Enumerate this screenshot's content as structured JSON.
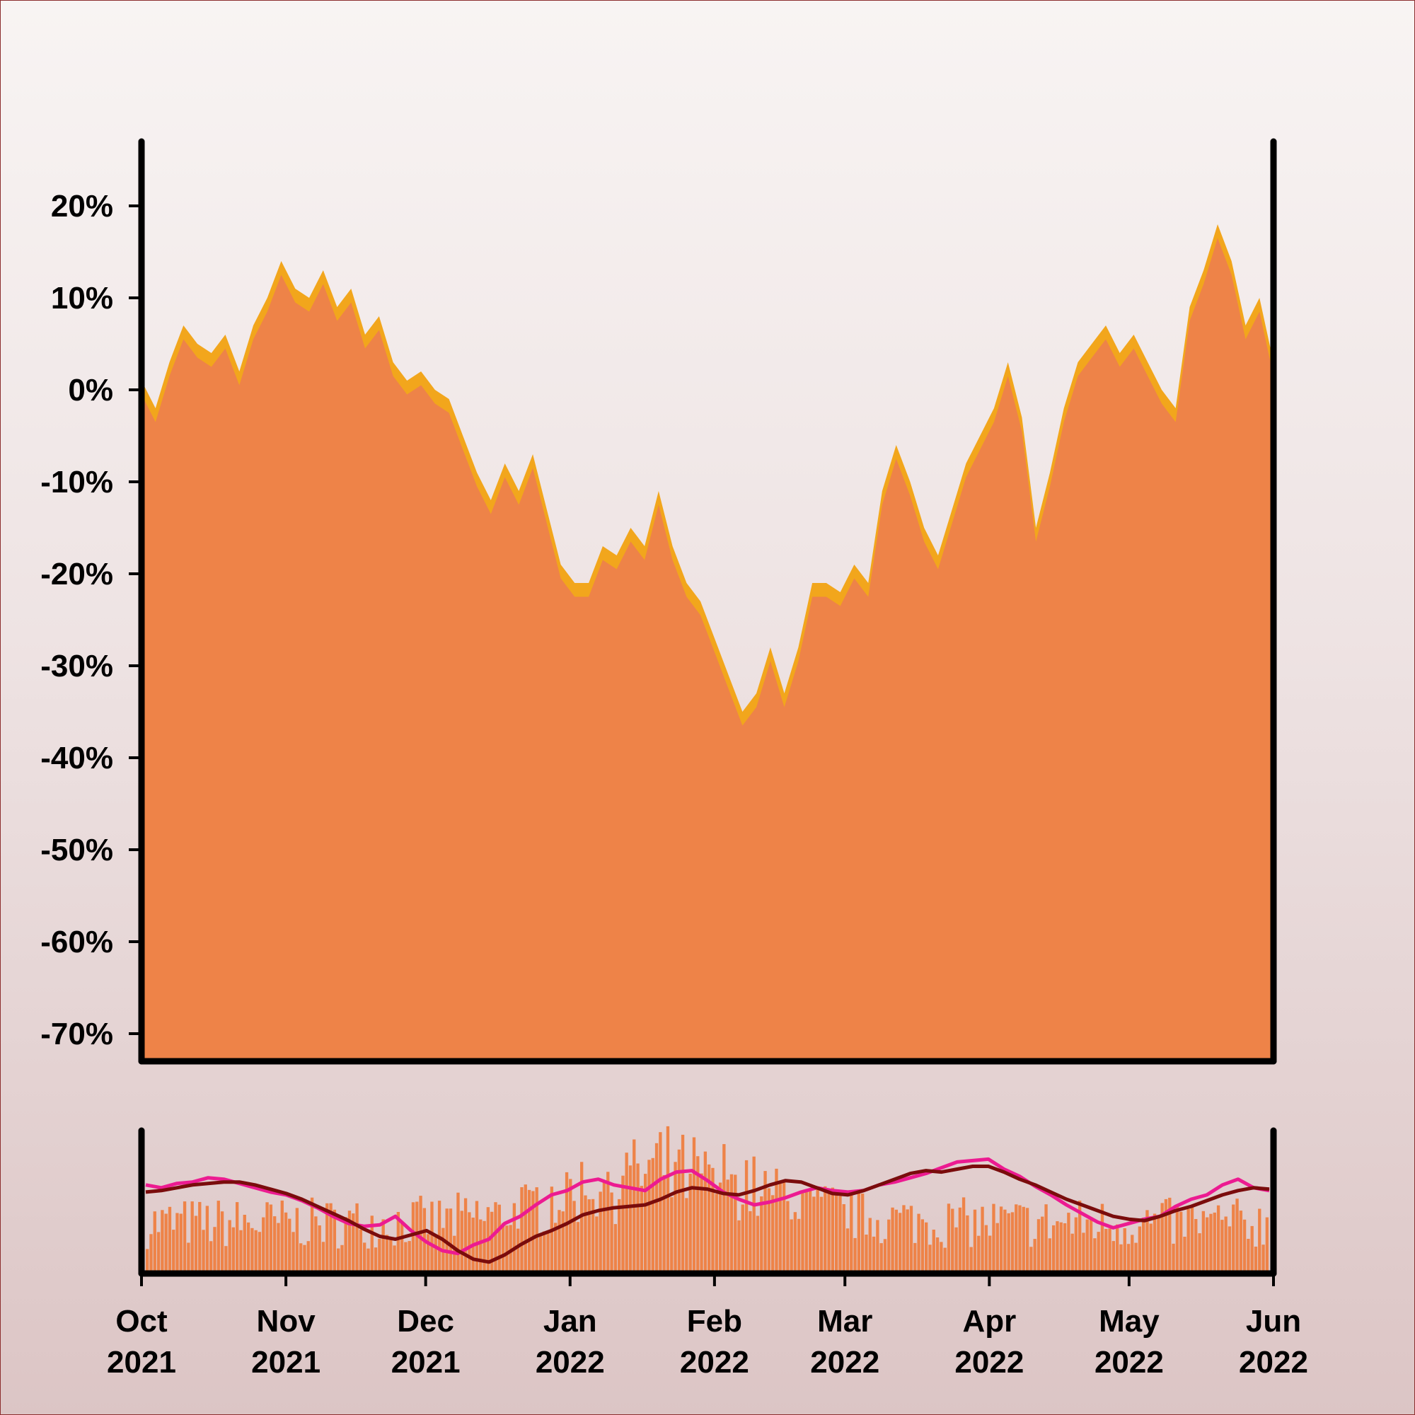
{
  "chart_data": [
    {
      "type": "area",
      "panel": "price",
      "y_tick_labels": [
        "20%",
        "10%",
        "0%",
        "-10%",
        "-20%",
        "-30%",
        "-40%",
        "-50%",
        "-60%",
        "-70%"
      ],
      "y_ticks": [
        20,
        10,
        0,
        -10,
        -20,
        -30,
        -40,
        -50,
        -60,
        -70
      ],
      "ylim": [
        -73,
        27
      ],
      "xlim": [
        "2021-10-01",
        "2022-06-01"
      ],
      "grid": false,
      "colors": {
        "fill": "#ee8348",
        "band": "#f2a61c"
      },
      "x": [
        "2021-10-01",
        "2021-10-04",
        "2021-10-07",
        "2021-10-10",
        "2021-10-13",
        "2021-10-16",
        "2021-10-19",
        "2021-10-22",
        "2021-10-25",
        "2021-10-28",
        "2021-10-31",
        "2021-11-03",
        "2021-11-06",
        "2021-11-09",
        "2021-11-12",
        "2021-11-15",
        "2021-11-18",
        "2021-11-21",
        "2021-11-24",
        "2021-11-27",
        "2021-11-30",
        "2021-12-03",
        "2021-12-06",
        "2021-12-09",
        "2021-12-12",
        "2021-12-15",
        "2021-12-18",
        "2021-12-21",
        "2021-12-24",
        "2021-12-27",
        "2021-12-30",
        "2022-01-02",
        "2022-01-05",
        "2022-01-08",
        "2022-01-11",
        "2022-01-14",
        "2022-01-17",
        "2022-01-20",
        "2022-01-23",
        "2022-01-26",
        "2022-01-29",
        "2022-02-01",
        "2022-02-04",
        "2022-02-07",
        "2022-02-10",
        "2022-02-13",
        "2022-02-16",
        "2022-02-19",
        "2022-02-22",
        "2022-02-25",
        "2022-02-28",
        "2022-03-03",
        "2022-03-06",
        "2022-03-09",
        "2022-03-12",
        "2022-03-15",
        "2022-03-18",
        "2022-03-21",
        "2022-03-24",
        "2022-03-27",
        "2022-03-30",
        "2022-04-02",
        "2022-04-05",
        "2022-04-08",
        "2022-04-11",
        "2022-04-14",
        "2022-04-17",
        "2022-04-20",
        "2022-04-23",
        "2022-04-26",
        "2022-04-29",
        "2022-05-02",
        "2022-05-05",
        "2022-05-08",
        "2022-05-11",
        "2022-05-14",
        "2022-05-17",
        "2022-05-20",
        "2022-05-23",
        "2022-05-26",
        "2022-05-29",
        "2022-06-01"
      ],
      "y": [
        1,
        -2,
        3,
        7,
        5,
        4,
        6,
        2,
        7,
        10,
        14,
        11,
        10,
        13,
        9,
        11,
        6,
        8,
        3,
        1,
        2,
        0,
        -1,
        -5,
        -9,
        -12,
        -8,
        -11,
        -7,
        -13,
        -19,
        -21,
        -21,
        -17,
        -18,
        -15,
        -17,
        -11,
        -17,
        -21,
        -23,
        -27,
        -31,
        -35,
        -33,
        -28,
        -33,
        -28,
        -21,
        -21,
        -22,
        -19,
        -21,
        -11,
        -6,
        -10,
        -15,
        -18,
        -13,
        -8,
        -5,
        -2,
        3,
        -3,
        -15,
        -9,
        -2,
        3,
        5,
        7,
        4,
        6,
        3,
        0,
        -2,
        9,
        13,
        18,
        14,
        7,
        10,
        3
      ]
    },
    {
      "type": "bar",
      "panel": "volume",
      "colors": {
        "bars": "#ee8348",
        "fast_line": "#ec1b91",
        "slow_line": "#7a0c0c"
      },
      "series": [
        {
          "values": [
            62,
            60,
            63,
            64,
            67,
            66,
            63,
            60,
            57,
            55,
            51,
            46,
            40,
            35,
            33,
            34,
            40,
            30,
            22,
            16,
            14,
            20,
            24,
            35,
            40,
            48,
            55,
            58,
            64,
            66,
            62,
            60,
            58,
            66,
            71,
            72,
            65,
            57,
            52,
            48,
            50,
            53,
            57,
            60,
            58,
            57,
            58,
            62,
            64,
            67,
            70,
            74,
            78,
            79,
            80,
            73,
            68,
            61,
            55,
            48,
            42,
            36,
            32,
            35,
            38,
            40,
            47,
            52,
            55,
            62,
            66,
            60,
            58
          ]
        },
        {
          "values": [
            57,
            58,
            60,
            62,
            63,
            64,
            64,
            62,
            59,
            56,
            52,
            47,
            42,
            37,
            31,
            26,
            24,
            27,
            30,
            24,
            16,
            10,
            8,
            13,
            20,
            26,
            30,
            35,
            41,
            44,
            46,
            47,
            48,
            52,
            57,
            60,
            59,
            56,
            55,
            58,
            62,
            65,
            64,
            60,
            56,
            55,
            58,
            62,
            66,
            70,
            72,
            71,
            73,
            75,
            75,
            71,
            66,
            62,
            57,
            52,
            48,
            44,
            40,
            38,
            37,
            40,
            44,
            47,
            51,
            55,
            58,
            60,
            59
          ]
        }
      ]
    }
  ],
  "x_axis": {
    "ticks": [
      {
        "month": "Oct",
        "year": "2021",
        "date": "2021-10-01"
      },
      {
        "month": "Nov",
        "year": "2021",
        "date": "2021-11-01"
      },
      {
        "month": "Dec",
        "year": "2021",
        "date": "2021-12-01"
      },
      {
        "month": "Jan",
        "year": "2022",
        "date": "2022-01-01"
      },
      {
        "month": "Feb",
        "year": "2022",
        "date": "2022-02-01"
      },
      {
        "month": "Mar",
        "year": "2022",
        "date": "2022-03-01"
      },
      {
        "month": "Apr",
        "year": "2022",
        "date": "2022-04-01"
      },
      {
        "month": "May",
        "year": "2022",
        "date": "2022-05-01"
      },
      {
        "month": "Jun",
        "year": "2022",
        "date": "2022-06-01"
      }
    ]
  }
}
